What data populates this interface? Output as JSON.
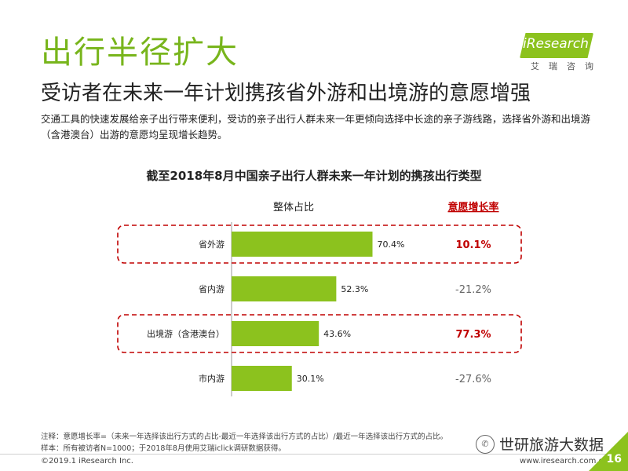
{
  "title": "出行半径扩大",
  "logo": {
    "text": "iResearch",
    "sub": "艾瑞咨询"
  },
  "subtitle": "受访者在未来一年计划携孩省外游和出境游的意愿增强",
  "description": "交通工具的快速发展给亲子出行带来便利，受访的亲子出行人群未来一年更倾向选择中长途的亲子游线路，选择省外游和出境游（含港澳台）出游的意愿均呈现增长趋势。",
  "chart_data": {
    "type": "bar",
    "orientation": "horizontal",
    "title": "截至2018年8月中国亲子出行人群未来一年计划的携孩出行类型",
    "column_header": "整体占比",
    "growth_header": "意愿增长率",
    "categories": [
      "省外游",
      "省内游",
      "出境游（含港澳台）",
      "市内游"
    ],
    "values": [
      70.4,
      52.3,
      43.6,
      30.1
    ],
    "value_labels": [
      "70.4%",
      "52.3%",
      "43.6%",
      "30.1%"
    ],
    "growth": [
      10.1,
      -21.2,
      77.3,
      -27.6
    ],
    "growth_labels": [
      "10.1%",
      "-21.2%",
      "77.3%",
      "-27.6%"
    ],
    "highlighted": [
      true,
      false,
      true,
      false
    ],
    "xlim": [
      0,
      100
    ],
    "bar_color": "#8cc21e",
    "highlight_color": "#c00000"
  },
  "footnotes": {
    "note": "注释：意愿增长率=（未来一年选择该出行方式的占比-最近一年选择该出行方式的占比）/最近一年选择该出行方式的占比。",
    "sample": "样本：所有被访者N=1000；于2018年8月使用艾瑞iclick调研数据获得。"
  },
  "wechat": "世研旅游大数据",
  "copyright": "©2019.1 iResearch Inc.",
  "website": "www.iresearch.com.cn",
  "page_number": "16"
}
